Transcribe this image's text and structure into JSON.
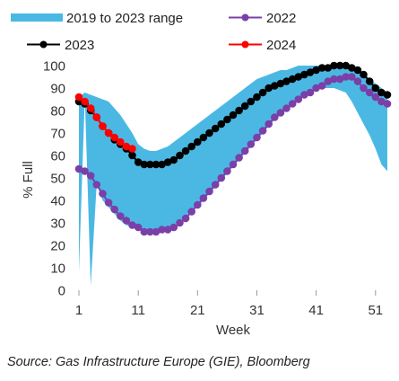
{
  "source": "Source: Gas Infrastructure Europe (GIE), Bloomberg",
  "chart_data": {
    "type": "line",
    "xlabel": "Week",
    "ylabel": "% Full",
    "xticks": [
      1,
      11,
      21,
      31,
      41,
      51
    ],
    "yticks": [
      0,
      10,
      20,
      30,
      40,
      50,
      60,
      70,
      80,
      90,
      100
    ],
    "xlim": [
      1,
      53
    ],
    "ylim": [
      0,
      100
    ],
    "grid": false,
    "legend_position": "top",
    "range_series": {
      "name": "2019 to 2023 range",
      "color": "#4bb8e4",
      "x": [
        1,
        2,
        3,
        4,
        5,
        6,
        7,
        8,
        9,
        10,
        11,
        12,
        13,
        14,
        15,
        16,
        17,
        18,
        19,
        20,
        21,
        22,
        23,
        24,
        25,
        26,
        27,
        28,
        29,
        30,
        31,
        32,
        33,
        34,
        35,
        36,
        37,
        38,
        39,
        40,
        41,
        42,
        43,
        44,
        45,
        46,
        47,
        48,
        49,
        50,
        51,
        52,
        53
      ],
      "low": [
        8,
        86,
        2,
        47,
        40,
        37,
        34,
        31,
        29,
        28,
        27,
        26,
        26,
        27,
        27,
        28,
        29,
        31,
        33,
        35,
        37,
        40,
        43,
        46,
        49,
        52,
        55,
        58,
        61,
        64,
        67,
        70,
        73,
        76,
        78,
        81,
        83,
        85,
        87,
        88,
        89,
        90,
        90,
        90,
        89,
        88,
        84,
        79,
        74,
        69,
        63,
        56,
        53
      ],
      "high": [
        86,
        88,
        87,
        86,
        85,
        84,
        81,
        78,
        74,
        70,
        65,
        63,
        62,
        62,
        63,
        64,
        66,
        68,
        70,
        72,
        74,
        76,
        78,
        80,
        82,
        84,
        86,
        88,
        90,
        92,
        94,
        95,
        96,
        97,
        98,
        98,
        99,
        100,
        100,
        100,
        100,
        100,
        100,
        100,
        100,
        100,
        100,
        99,
        97,
        94,
        92,
        90,
        88
      ]
    },
    "series": [
      {
        "name": "2022",
        "color": "#7b3fa8",
        "x": [
          1,
          2,
          3,
          4,
          5,
          6,
          7,
          8,
          9,
          10,
          11,
          12,
          13,
          14,
          15,
          16,
          17,
          18,
          19,
          20,
          21,
          22,
          23,
          24,
          25,
          26,
          27,
          28,
          29,
          30,
          31,
          32,
          33,
          34,
          35,
          36,
          37,
          38,
          39,
          40,
          41,
          42,
          43,
          44,
          45,
          46,
          47,
          48,
          49,
          50,
          51,
          52,
          53
        ],
        "y": [
          54,
          53,
          51,
          47,
          43,
          39,
          36,
          33,
          31,
          29,
          28,
          26,
          26,
          26,
          27,
          27,
          28,
          30,
          32,
          35,
          38,
          41,
          44,
          47,
          50,
          53,
          56,
          59,
          62,
          65,
          68,
          71,
          74,
          77,
          79,
          81,
          83,
          85,
          87,
          88,
          90,
          91,
          93,
          94,
          94,
          95,
          95,
          93,
          90,
          88,
          86,
          84,
          83
        ]
      },
      {
        "name": "2023",
        "color": "#000000",
        "x": [
          1,
          2,
          3,
          4,
          5,
          6,
          7,
          8,
          9,
          10,
          11,
          12,
          13,
          14,
          15,
          16,
          17,
          18,
          19,
          20,
          21,
          22,
          23,
          24,
          25,
          26,
          27,
          28,
          29,
          30,
          31,
          32,
          33,
          34,
          35,
          36,
          37,
          38,
          39,
          40,
          41,
          42,
          43,
          44,
          45,
          46,
          47,
          48,
          49,
          50,
          51,
          52,
          53
        ],
        "y": [
          84,
          83,
          80,
          77,
          73,
          70,
          67,
          65,
          63,
          60,
          57,
          56,
          56,
          56,
          56,
          57,
          58,
          60,
          62,
          64,
          66,
          68,
          70,
          72,
          74,
          76,
          78,
          80,
          82,
          84,
          86,
          88,
          90,
          91,
          92,
          93,
          94,
          95,
          96,
          97,
          98,
          99,
          99,
          100,
          100,
          100,
          99,
          98,
          96,
          93,
          90,
          88,
          87
        ]
      },
      {
        "name": "2024",
        "color": "#ff0000",
        "x": [
          1,
          2,
          3,
          4,
          5,
          6,
          7,
          8,
          9,
          10
        ],
        "y": [
          86,
          84,
          81,
          77,
          73,
          70,
          68,
          66,
          64,
          63
        ]
      }
    ]
  }
}
